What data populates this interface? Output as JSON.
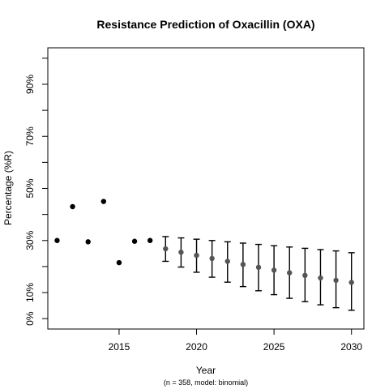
{
  "chart_data": {
    "type": "scatter",
    "title": "Resistance Prediction of Oxacillin (OXA)",
    "xlabel": "Year",
    "ylabel": "Percentage (%R)",
    "caption": "(n = 358, model: binomial)",
    "xlim": [
      2010.4,
      2030.8
    ],
    "ylim": [
      -4,
      104
    ],
    "x_ticks": [
      2015,
      2020,
      2025,
      2030
    ],
    "y_ticks": [
      0,
      10,
      20,
      30,
      40,
      50,
      60,
      70,
      80,
      90,
      100
    ],
    "y_tick_labels": [
      {
        "value": 0,
        "label": "0%"
      },
      {
        "value": 10,
        "label": "10%"
      },
      {
        "value": 30,
        "label": "30%"
      },
      {
        "value": 50,
        "label": "50%"
      },
      {
        "value": 70,
        "label": "70%"
      },
      {
        "value": 90,
        "label": "90%"
      }
    ],
    "grid": false,
    "series": [
      {
        "color": "#000000",
        "points": [
          {
            "x": 2011,
            "y": 30.0
          },
          {
            "x": 2012,
            "y": 43.0
          },
          {
            "x": 2013,
            "y": 29.5
          },
          {
            "x": 2014,
            "y": 45.0
          },
          {
            "x": 2015,
            "y": 21.5
          },
          {
            "x": 2016,
            "y": 29.7
          },
          {
            "x": 2017,
            "y": 30.0
          }
        ]
      },
      {
        "color": "#555555",
        "error_color": "#000000",
        "points": [
          {
            "x": 2018,
            "y": 26.8,
            "low": 22.0,
            "high": 31.5
          },
          {
            "x": 2019,
            "y": 25.5,
            "low": 19.8,
            "high": 31.0
          },
          {
            "x": 2020,
            "y": 24.3,
            "low": 17.8,
            "high": 30.5
          },
          {
            "x": 2021,
            "y": 23.1,
            "low": 15.9,
            "high": 30.0
          },
          {
            "x": 2022,
            "y": 22.0,
            "low": 14.0,
            "high": 29.5
          },
          {
            "x": 2023,
            "y": 20.8,
            "low": 12.3,
            "high": 29.0
          },
          {
            "x": 2024,
            "y": 19.7,
            "low": 10.7,
            "high": 28.5
          },
          {
            "x": 2025,
            "y": 18.6,
            "low": 9.2,
            "high": 28.0
          },
          {
            "x": 2026,
            "y": 17.6,
            "low": 7.8,
            "high": 27.5
          },
          {
            "x": 2027,
            "y": 16.6,
            "low": 6.5,
            "high": 27.0
          },
          {
            "x": 2028,
            "y": 15.6,
            "low": 5.3,
            "high": 26.5
          },
          {
            "x": 2029,
            "y": 14.7,
            "low": 4.2,
            "high": 26.0
          },
          {
            "x": 2030,
            "y": 13.9,
            "low": 3.2,
            "high": 25.3
          }
        ]
      }
    ]
  }
}
